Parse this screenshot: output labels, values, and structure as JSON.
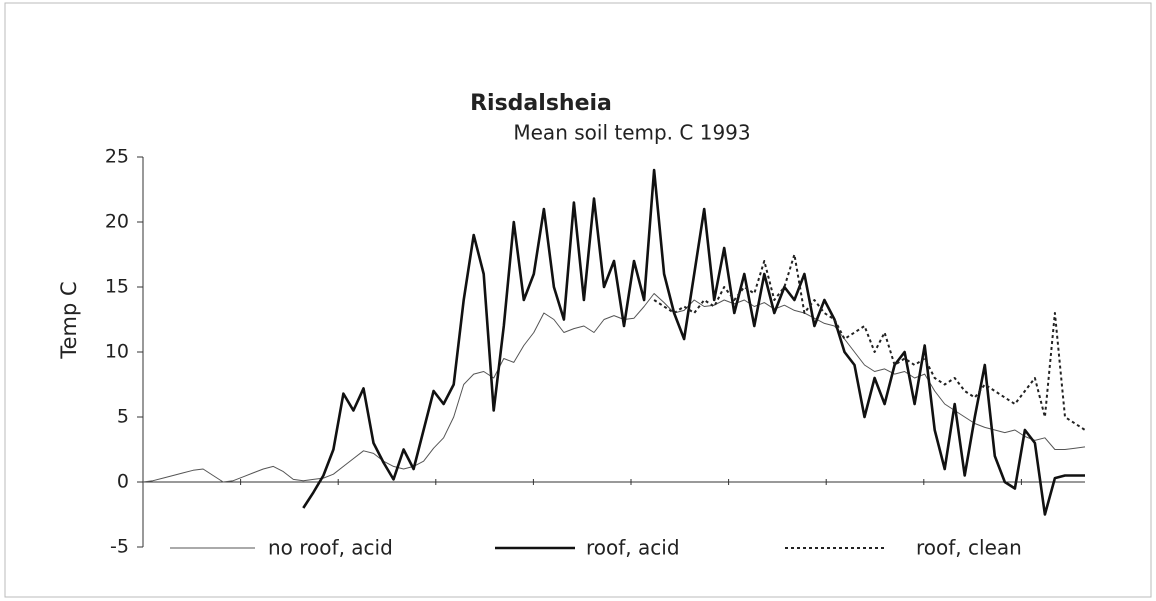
{
  "chart_data": {
    "type": "line",
    "title": "Risdalsheia",
    "subtitle": "Mean soil temp. C 1993",
    "y_label": "Temp C",
    "ylim": [
      -5,
      25
    ],
    "yticks": [
      -5,
      0,
      5,
      10,
      15,
      20,
      25
    ],
    "series": [
      {
        "name": "no roof, acid",
        "color": "#555555",
        "style": "thin",
        "values": [
          0,
          0.1,
          0.3,
          0.5,
          0.7,
          0.9,
          1.0,
          0.5,
          0,
          0.1,
          0.4,
          0.7,
          1.0,
          1.2,
          0.8,
          0.2,
          0.1,
          0.2,
          0.3,
          0.6,
          1.2,
          1.8,
          2.4,
          2.2,
          1.6,
          1.2,
          1.0,
          1.2,
          1.6,
          2.6,
          3.4,
          5,
          7.5,
          8.3,
          8.5,
          8,
          9.5,
          9.2,
          10.5,
          11.5,
          13,
          12.5,
          11.5,
          11.8,
          12,
          11.5,
          12.5,
          12.8,
          12.5,
          12.6,
          13.5,
          14.5,
          13.8,
          13,
          13.2,
          14,
          13.5,
          13.6,
          14,
          13.7,
          14,
          13.5,
          13.8,
          13.3,
          13.6,
          13.2,
          13,
          12.6,
          12.2,
          12,
          11,
          10,
          9,
          8.5,
          8.7,
          8.3,
          8.5,
          8,
          8.3,
          7,
          6,
          5.5,
          5,
          4.5,
          4.2,
          4,
          3.8,
          4,
          3.5,
          3.2,
          3.4,
          2.5,
          2.5,
          2.6,
          2.7
        ]
      },
      {
        "name": "roof, acid",
        "color": "#111111",
        "style": "thick",
        "values": [
          null,
          null,
          null,
          null,
          null,
          null,
          null,
          null,
          null,
          null,
          null,
          null,
          null,
          null,
          null,
          null,
          -2,
          -0.8,
          0.5,
          2.5,
          6.8,
          5.5,
          7.2,
          3,
          1.5,
          0.2,
          2.5,
          1,
          4,
          7,
          6,
          7.5,
          14,
          19,
          16,
          5.5,
          12,
          20,
          14,
          16,
          21,
          15,
          12.5,
          21.5,
          14,
          21.8,
          15,
          17,
          12,
          17,
          14,
          24,
          16,
          13,
          11,
          16,
          21,
          14,
          18,
          13,
          16,
          12,
          16,
          13,
          15,
          14,
          16,
          12,
          14,
          12.5,
          10,
          9,
          5,
          8,
          6,
          9,
          10,
          6,
          10.5,
          4,
          1,
          6,
          0.5,
          5,
          9,
          2,
          0,
          -0.5,
          4,
          3,
          -2.5,
          0.3,
          0.5,
          0.5,
          0.5
        ]
      },
      {
        "name": "roof, clean",
        "color": "#222222",
        "style": "dotted",
        "values": [
          null,
          null,
          null,
          null,
          null,
          null,
          null,
          null,
          null,
          null,
          null,
          null,
          null,
          null,
          null,
          null,
          null,
          null,
          null,
          null,
          null,
          null,
          null,
          null,
          null,
          null,
          null,
          null,
          null,
          null,
          null,
          null,
          null,
          null,
          null,
          null,
          null,
          null,
          null,
          null,
          null,
          null,
          null,
          null,
          null,
          null,
          null,
          null,
          null,
          null,
          null,
          14,
          13.5,
          13,
          13.5,
          13,
          14,
          13.5,
          15,
          14,
          15,
          14.5,
          17,
          14,
          15,
          17.5,
          13,
          14,
          13,
          12.5,
          11,
          11.5,
          12,
          10,
          11.5,
          9,
          9.5,
          9,
          9.5,
          8,
          7.5,
          8,
          7,
          6.5,
          7.5,
          7,
          6.5,
          6,
          7,
          8,
          5,
          13,
          5,
          4.5,
          4
        ]
      }
    ]
  }
}
